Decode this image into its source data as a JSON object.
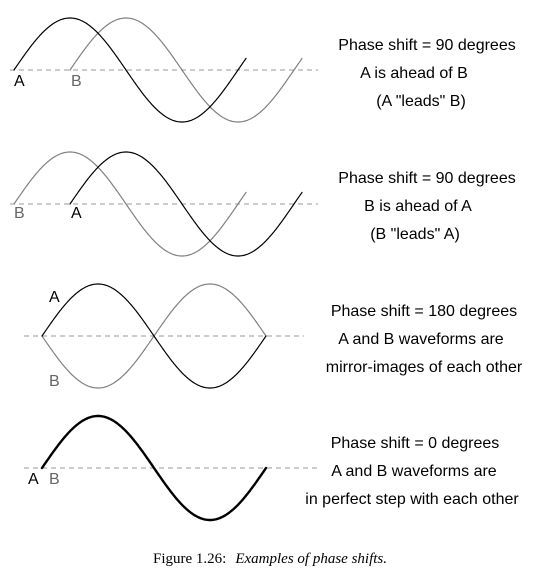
{
  "panels": [
    {
      "lines": [
        "Phase shift = 90 degrees",
        "A is ahead of B",
        "(A \"leads\" B)"
      ],
      "labels": [
        "A",
        "B"
      ]
    },
    {
      "lines": [
        "Phase shift = 90 degrees",
        "B is ahead of A",
        "(B \"leads\" A)"
      ],
      "labels": [
        "B",
        "A"
      ]
    },
    {
      "lines": [
        "Phase shift = 180 degrees",
        "A and B waveforms are",
        "mirror-images of each other"
      ],
      "labels": [
        "A",
        "B"
      ]
    },
    {
      "lines": [
        "Phase shift = 0 degrees",
        "A and B waveforms are",
        "in perfect step with each other"
      ],
      "labels": [
        "A",
        "B"
      ]
    }
  ],
  "caption": {
    "number": "Figure 1.26:",
    "text": "Examples of phase shifts."
  },
  "colors": {
    "wave_a": "#000000",
    "wave_b": "#808080",
    "axis": "#9a9a9a"
  }
}
